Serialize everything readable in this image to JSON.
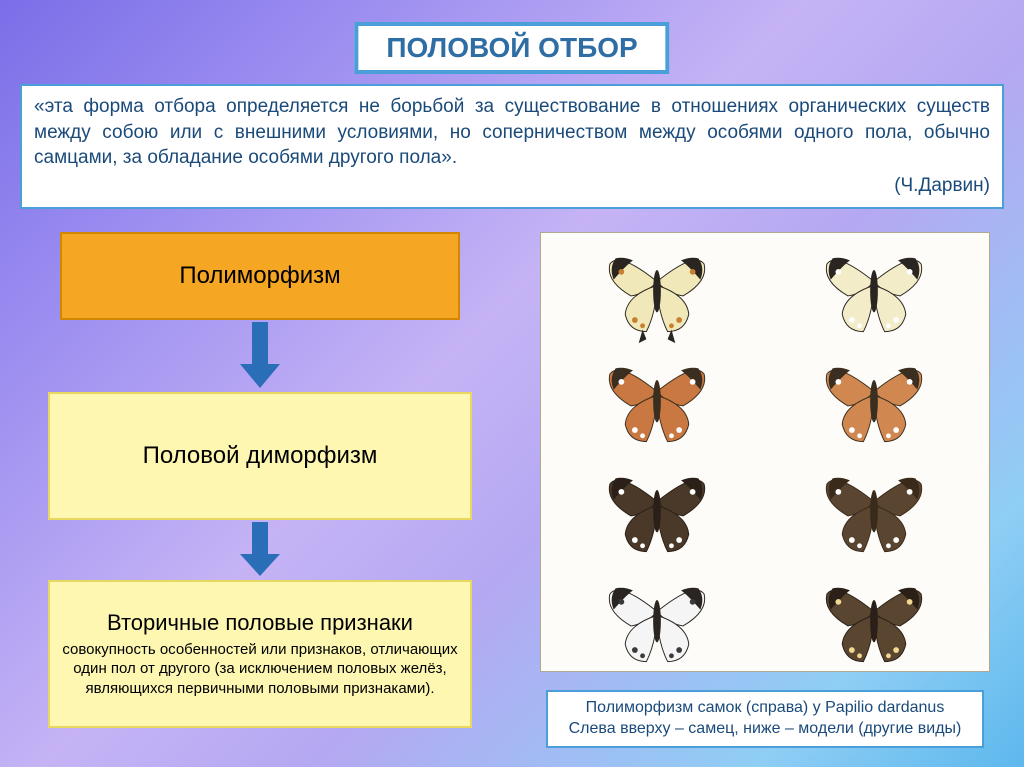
{
  "title": {
    "text": "ПОЛОВОЙ ОТБОР",
    "fontsize": 28,
    "color": "#2f6da5",
    "bg": "#ffffff",
    "border": "#4a9fd8"
  },
  "quote": {
    "text": "«эта форма отбора определяется не борьбой за существование в отношениях органических существ между собою или с внешними условиями, но соперничеством между особями одного пола, обычно самцами, за обладание особями другого пола».",
    "author": "(Ч.Дарвин)",
    "fontsize": 19,
    "color": "#1a4a7a",
    "border": "#4a9fd8",
    "bg": "#ffffff"
  },
  "flow": {
    "box1": {
      "label": "Полиморфизм",
      "fontsize": 24,
      "bg": "#f5a623",
      "border": "#d18700"
    },
    "box2": {
      "label": "Половой диморфизм",
      "fontsize": 24,
      "bg": "#fdf7b2",
      "border": "#e8d860"
    },
    "box3": {
      "header": "Вторичные половые признаки",
      "sub": "совокупность особенностей или признаков, отличающих один пол от другого (за исключением половых желёз, являющихся первичными половыми признаками).",
      "header_fontsize": 22,
      "sub_fontsize": 15,
      "bg": "#fdf7b2",
      "border": "#e8d860"
    },
    "arrow_color": "#2a6eb8"
  },
  "butterflies": {
    "bg": "#fdfcf8",
    "cells": [
      {
        "wing": "#f0e8b8",
        "tip": "#2a2520",
        "spots": "#c88030",
        "tail": true
      },
      {
        "wing": "#f2ecc8",
        "tip": "#2a2520",
        "spots": "#ffffff",
        "tail": false
      },
      {
        "wing": "#c87840",
        "tip": "#3a2e20",
        "spots": "#ffffff",
        "tail": false
      },
      {
        "wing": "#d08850",
        "tip": "#3a2e20",
        "spots": "#ffffff",
        "tail": false
      },
      {
        "wing": "#4a3828",
        "tip": "#2a2018",
        "spots": "#ffffff",
        "tail": false
      },
      {
        "wing": "#5a4530",
        "tip": "#3a2a1a",
        "spots": "#ffffff",
        "tail": false
      },
      {
        "wing": "#f5f5f5",
        "tip": "#2a2520",
        "spots": "#3a3a3a",
        "tail": false
      },
      {
        "wing": "#5a4530",
        "tip": "#2a2018",
        "spots": "#f0d890",
        "tail": false
      }
    ]
  },
  "caption": {
    "line1": "Полиморфизм самок (справа) у Papilio dardanus",
    "line2": "Слева вверху – самец, ниже – модели (другие виды)",
    "fontsize": 16,
    "color": "#1a4a7a",
    "border": "#4a9fd8",
    "bg": "#ffffff"
  }
}
